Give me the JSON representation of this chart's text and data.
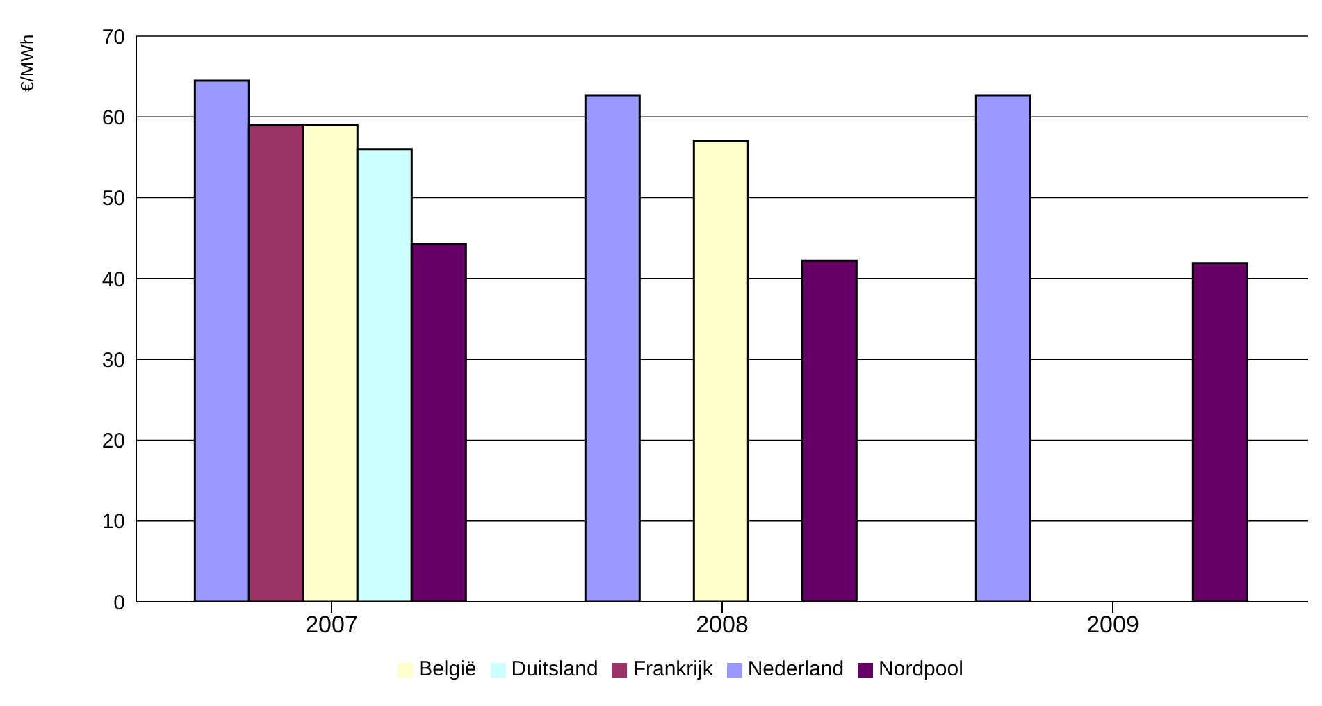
{
  "chart_data": {
    "type": "bar",
    "ylabel": "€/MWh",
    "categories": [
      "2007",
      "2008",
      "2009"
    ],
    "series": [
      {
        "name": "Nederland",
        "color": "#9999ff",
        "values": [
          64.5,
          62.7,
          62.7
        ]
      },
      {
        "name": "Frankrijk",
        "color": "#993366",
        "values": [
          59,
          null,
          null
        ]
      },
      {
        "name": "België",
        "color": "#ffffcc",
        "values": [
          59,
          57,
          null
        ]
      },
      {
        "name": "Duitsland",
        "color": "#ccffff",
        "values": [
          56,
          null,
          null
        ]
      },
      {
        "name": "Nordpool",
        "color": "#660066",
        "values": [
          44.3,
          42.2,
          41.9
        ]
      }
    ],
    "ylim": [
      0,
      70
    ],
    "yticks": [
      0,
      10,
      20,
      30,
      40,
      50,
      60,
      70
    ],
    "grid": "y",
    "legend": "bottom"
  }
}
